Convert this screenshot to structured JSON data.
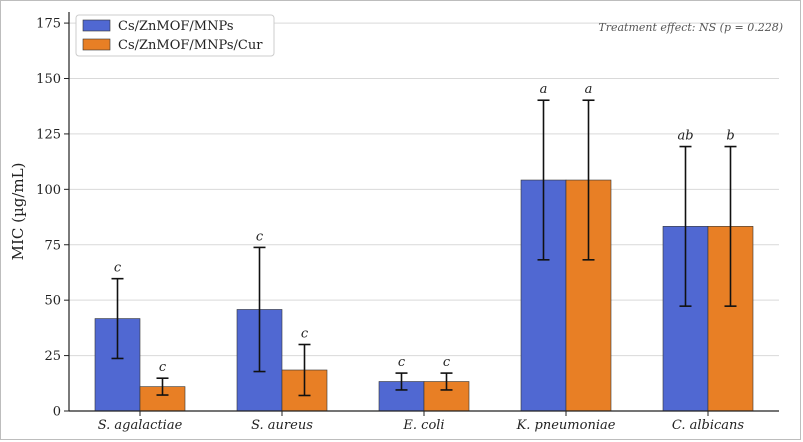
{
  "chart_data": {
    "type": "bar",
    "categories": [
      "S. agalactiae",
      "S. aureus",
      "E. coli",
      "K. pneumoniae",
      "C. albicans"
    ],
    "series": [
      {
        "name": "Cs/ZnMOF/MNPs",
        "color": "#5068d2",
        "values": [
          41.7,
          45.8,
          13.3,
          104.2,
          83.3
        ],
        "errors": [
          18,
          28,
          3.8,
          36,
          36
        ],
        "significance": [
          "c",
          "c",
          "c",
          "a",
          "ab"
        ]
      },
      {
        "name": "Cs/ZnMOF/MNPs/Cur",
        "color": "#e87f25",
        "values": [
          11.0,
          18.5,
          13.3,
          104.2,
          83.3
        ],
        "errors": [
          3.8,
          11.5,
          3.8,
          36,
          36
        ],
        "significance": [
          "c",
          "c",
          "c",
          "a",
          "b"
        ]
      }
    ],
    "ylabel": "MIC (µg/mL)",
    "xlabel": "",
    "ylim": [
      0,
      180
    ],
    "yticks": [
      0,
      25,
      50,
      75,
      100,
      125,
      150,
      175
    ],
    "grid": true,
    "legend_position": "top-left",
    "annotation": "Treatment effect: NS (p = 0.228)"
  }
}
